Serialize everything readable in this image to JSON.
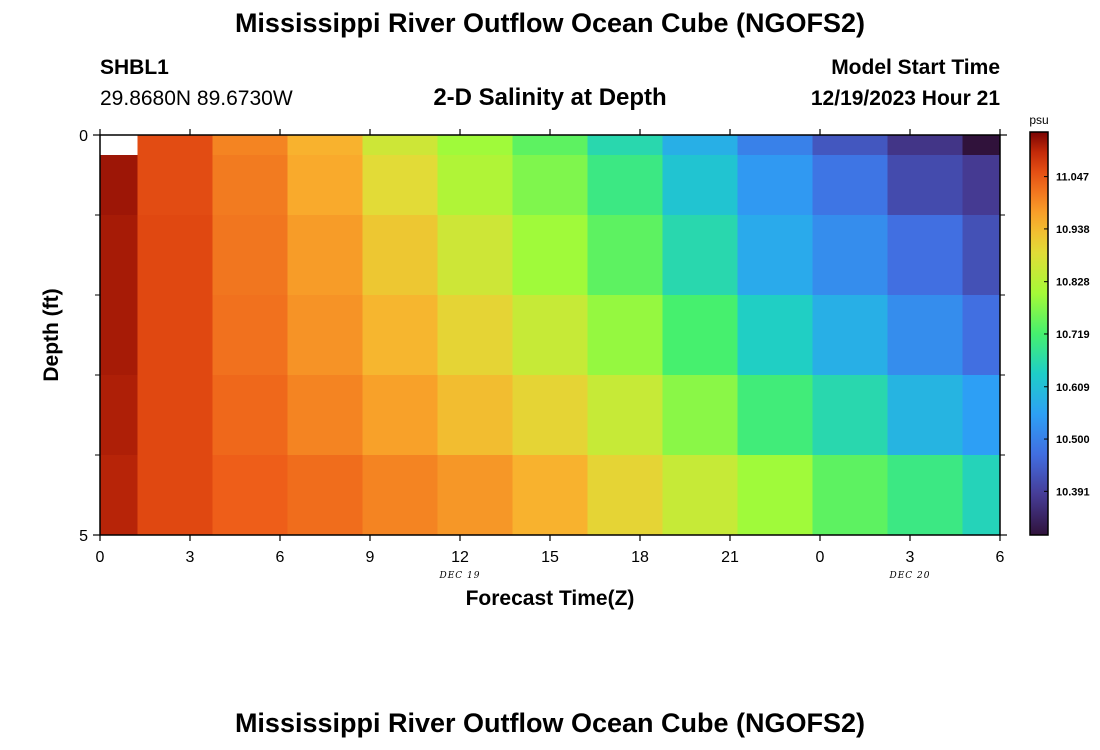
{
  "title": "Mississippi River Outflow Ocean Cube (NGOFS2)",
  "station": {
    "name": "SHBL1",
    "coords": "29.8680N  89.6730W"
  },
  "subtitle": "2-D Salinity at Depth",
  "model_start": {
    "label": "Model Start Time",
    "value": "12/19/2023 Hour 21"
  },
  "chart_data": {
    "type": "heatmap",
    "title": "2-D Salinity at Depth",
    "xlabel": "Forecast Time(Z)",
    "ylabel": "Depth (ft)",
    "x_ticks": [
      "0",
      "3",
      "6",
      "9",
      "12",
      "15",
      "18",
      "21",
      "0",
      "3",
      "6"
    ],
    "x_tick_hours": [
      0,
      3,
      6,
      9,
      12,
      15,
      18,
      21,
      24,
      27,
      30
    ],
    "x_range": [
      0,
      30
    ],
    "date_labels": [
      {
        "text": "DEC 19",
        "hour": 12
      },
      {
        "text": "DEC 20",
        "hour": 27
      }
    ],
    "y_ticks": [
      "0",
      "5"
    ],
    "y_range": [
      0,
      5
    ],
    "column_hours": [
      0,
      2.5,
      5,
      7.5,
      10,
      12.5,
      15,
      17.5,
      20,
      22.5,
      25,
      27.5,
      30
    ],
    "depth_layers": [
      0,
      0.5,
      1.5,
      2.5,
      3.5,
      4.5
    ],
    "values": [
      [
        null,
        11.06,
        11.0,
        10.95,
        10.86,
        10.8,
        10.74,
        10.66,
        10.58,
        10.5,
        10.43,
        10.37,
        10.3
      ],
      [
        11.12,
        11.06,
        11.01,
        10.96,
        10.89,
        10.82,
        10.77,
        10.7,
        10.62,
        10.54,
        10.48,
        10.41,
        10.38
      ],
      [
        11.115,
        11.065,
        11.015,
        10.975,
        10.92,
        10.86,
        10.8,
        10.74,
        10.66,
        10.57,
        10.52,
        10.47,
        10.42
      ],
      [
        11.115,
        11.065,
        11.02,
        10.985,
        10.945,
        10.9,
        10.85,
        10.79,
        10.72,
        10.64,
        10.58,
        10.52,
        10.47
      ],
      [
        11.11,
        11.065,
        11.03,
        11.0,
        10.97,
        10.935,
        10.9,
        10.85,
        10.78,
        10.71,
        10.66,
        10.59,
        10.55
      ],
      [
        11.105,
        11.065,
        11.04,
        11.025,
        11.0,
        10.98,
        10.95,
        10.9,
        10.85,
        10.8,
        10.74,
        10.7,
        10.65
      ]
    ],
    "colorbar": {
      "unit": "psu",
      "ticks": [
        "11.047",
        "10.938",
        "10.828",
        "10.719",
        "10.609",
        "10.500",
        "10.391"
      ],
      "tick_values": [
        11.047,
        10.938,
        10.828,
        10.719,
        10.609,
        10.5,
        10.391
      ],
      "vmin": 10.3,
      "vmax": 11.14,
      "colormap": "turbo"
    }
  },
  "colors": {
    "background": "#ffffff",
    "axis": "#000000",
    "empty_cell": "#ffffff"
  }
}
